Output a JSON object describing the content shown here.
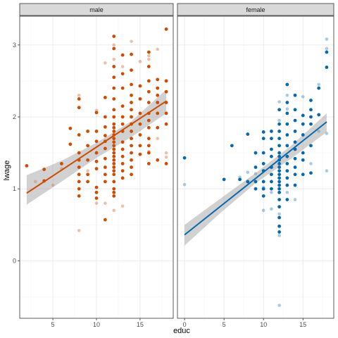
{
  "chart_data": {
    "type": "scatter",
    "xlabel": "educ",
    "ylabel": "lwage",
    "xlim": [
      1.2,
      18.8
    ],
    "ylim": [
      -0.8,
      3.4
    ],
    "x_ticks": [
      0,
      5,
      10,
      15
    ],
    "y_ticks": [
      0,
      1,
      2,
      3
    ],
    "grid": true,
    "legend": "none",
    "colors": {
      "strip_fill": "#d9d9d9",
      "band": "#999999",
      "grid_major": "#ebebeb",
      "grid_minor": "#f5f5f5"
    },
    "panels": [
      {
        "name": "male",
        "xlim": [
          1.2,
          18.8
        ],
        "x_ticks": [
          5,
          10,
          15
        ],
        "color": "#cc4c02",
        "fit": {
          "x": [
            2,
            18
          ],
          "y": [
            0.94,
            2.22
          ]
        },
        "band": {
          "x": [
            2,
            6,
            10,
            14,
            18
          ],
          "upper": [
            1.19,
            1.39,
            1.64,
            1.94,
            2.38
          ],
          "lower": [
            0.78,
            1.1,
            1.43,
            1.72,
            2.05
          ]
        },
        "points_strong": [
          [
            2,
            1.32
          ],
          [
            4,
            1.27
          ],
          [
            4,
            1.11
          ],
          [
            6,
            1.35
          ],
          [
            7,
            1.84
          ],
          [
            7,
            1.62
          ],
          [
            8,
            2.25
          ],
          [
            8,
            2.13
          ],
          [
            8,
            1.75
          ],
          [
            8,
            1.5
          ],
          [
            8,
            1.4
          ],
          [
            8,
            1.3
          ],
          [
            8,
            1.2
          ],
          [
            8,
            1.1
          ],
          [
            8,
            1.0
          ],
          [
            8,
            0.9
          ],
          [
            9,
            1.8
          ],
          [
            9,
            1.6
          ],
          [
            9,
            1.4
          ],
          [
            9,
            1.2
          ],
          [
            9,
            1.1
          ],
          [
            10,
            2.06
          ],
          [
            10,
            1.8
          ],
          [
            10,
            1.66
          ],
          [
            10,
            1.5
          ],
          [
            10,
            1.38
          ],
          [
            10,
            1.28
          ],
          [
            10,
            1.02
          ],
          [
            10,
            0.95
          ],
          [
            10,
            0.87
          ],
          [
            11,
            2.27
          ],
          [
            11,
            2.0
          ],
          [
            11,
            1.86
          ],
          [
            11,
            1.74
          ],
          [
            11,
            1.66
          ],
          [
            11,
            1.56
          ],
          [
            11,
            1.42
          ],
          [
            11,
            1.3
          ],
          [
            11,
            1.2
          ],
          [
            11,
            1.1
          ],
          [
            11,
            0.57
          ],
          [
            12,
            3.12
          ],
          [
            12,
            2.95
          ],
          [
            12,
            2.7
          ],
          [
            12,
            2.55
          ],
          [
            12,
            2.4
          ],
          [
            12,
            2.25
          ],
          [
            12,
            2.1
          ],
          [
            12,
            2.0
          ],
          [
            12,
            1.9
          ],
          [
            12,
            1.85
          ],
          [
            12,
            1.8
          ],
          [
            12,
            1.75
          ],
          [
            12,
            1.7
          ],
          [
            12,
            1.65
          ],
          [
            12,
            1.6
          ],
          [
            12,
            1.55
          ],
          [
            12,
            1.5
          ],
          [
            12,
            1.45
          ],
          [
            12,
            1.4
          ],
          [
            12,
            1.35
          ],
          [
            12,
            1.3
          ],
          [
            12,
            1.25
          ],
          [
            12,
            1.2
          ],
          [
            12,
            1.1
          ],
          [
            12,
            1.0
          ],
          [
            12,
            0.95
          ],
          [
            12,
            0.9
          ],
          [
            13,
            2.86
          ],
          [
            13,
            2.6
          ],
          [
            13,
            2.4
          ],
          [
            13,
            2.15
          ],
          [
            13,
            2.0
          ],
          [
            13,
            1.9
          ],
          [
            13,
            1.8
          ],
          [
            13,
            1.65
          ],
          [
            13,
            1.55
          ],
          [
            13,
            1.45
          ],
          [
            13,
            1.35
          ],
          [
            13,
            1.25
          ],
          [
            13,
            1.15
          ],
          [
            14,
            2.87
          ],
          [
            14,
            2.65
          ],
          [
            14,
            2.45
          ],
          [
            14,
            2.3
          ],
          [
            14,
            2.2
          ],
          [
            14,
            2.1
          ],
          [
            14,
            2.0
          ],
          [
            14,
            1.9
          ],
          [
            14,
            1.8
          ],
          [
            14,
            1.7
          ],
          [
            14,
            1.6
          ],
          [
            14,
            1.5
          ],
          [
            14,
            1.4
          ],
          [
            14,
            1.3
          ],
          [
            14,
            1.2
          ],
          [
            15,
            2.43
          ],
          [
            15,
            2.25
          ],
          [
            15,
            2.05
          ],
          [
            15,
            1.9
          ],
          [
            15,
            1.75
          ],
          [
            15,
            1.6
          ],
          [
            15,
            1.48
          ],
          [
            16,
            2.9
          ],
          [
            16,
            2.7
          ],
          [
            16,
            2.5
          ],
          [
            16,
            2.35
          ],
          [
            16,
            2.2
          ],
          [
            16,
            2.05
          ],
          [
            16,
            1.95
          ],
          [
            16,
            1.85
          ],
          [
            16,
            1.7
          ],
          [
            16,
            1.6
          ],
          [
            16,
            1.5
          ],
          [
            16,
            1.35
          ],
          [
            17,
            2.52
          ],
          [
            17,
            2.4
          ],
          [
            17,
            2.3
          ],
          [
            17,
            2.2
          ],
          [
            17,
            2.05
          ],
          [
            17,
            1.85
          ],
          [
            17,
            1.4
          ],
          [
            18,
            3.22
          ],
          [
            18,
            2.5
          ],
          [
            18,
            2.35
          ],
          [
            18,
            2.2
          ],
          [
            18,
            2.05
          ],
          [
            18,
            1.9
          ],
          [
            18,
            1.35
          ]
        ],
        "points_faint": [
          [
            3,
            1.1
          ],
          [
            5,
            1.05
          ],
          [
            6,
            1.28
          ],
          [
            8,
            0.42
          ],
          [
            8,
            2.3
          ],
          [
            9,
            1.25
          ],
          [
            10,
            2.09
          ],
          [
            10,
            0.8
          ],
          [
            11,
            2.75
          ],
          [
            11,
            0.8
          ],
          [
            12,
            3.0
          ],
          [
            12,
            2.8
          ],
          [
            12,
            0.7
          ],
          [
            13,
            2.7
          ],
          [
            13,
            0.76
          ],
          [
            14,
            3.05
          ],
          [
            14,
            2.0
          ],
          [
            15,
            2.77
          ],
          [
            16,
            2.85
          ],
          [
            16,
            2.8
          ],
          [
            16,
            1.52
          ],
          [
            17,
            2.94
          ],
          [
            17,
            1.7
          ],
          [
            18,
            1.5
          ],
          [
            18,
            1.44
          ]
        ]
      },
      {
        "name": "female",
        "xlim": [
          -0.9,
          18.9
        ],
        "x_ticks": [
          0,
          5,
          10,
          15
        ],
        "color": "#0868ac",
        "fit": {
          "x": [
            0,
            18
          ],
          "y": [
            0.36,
            1.93
          ]
        },
        "band": {
          "x": [
            0,
            4.5,
            9,
            13.5,
            18
          ],
          "upper": [
            0.5,
            0.86,
            1.22,
            1.6,
            2.05
          ],
          "lower": [
            0.21,
            0.66,
            1.08,
            1.42,
            1.79
          ]
        },
        "points_strong": [
          [
            0,
            1.43
          ],
          [
            5,
            1.13
          ],
          [
            6,
            1.6
          ],
          [
            7,
            1.13
          ],
          [
            8,
            1.76
          ],
          [
            8,
            1.1
          ],
          [
            9,
            1.5
          ],
          [
            9,
            1.3
          ],
          [
            9,
            1.1
          ],
          [
            9,
            1.0
          ],
          [
            10,
            1.79
          ],
          [
            10,
            1.7
          ],
          [
            10,
            1.5
          ],
          [
            10,
            1.35
          ],
          [
            10,
            1.25
          ],
          [
            10,
            1.1
          ],
          [
            10,
            1.0
          ],
          [
            10,
            0.9
          ],
          [
            11,
            1.8
          ],
          [
            11,
            1.7
          ],
          [
            11,
            1.55
          ],
          [
            11,
            1.45
          ],
          [
            11,
            1.3
          ],
          [
            11,
            1.2
          ],
          [
            11,
            1.1
          ],
          [
            11,
            1.0
          ],
          [
            12,
            2.1
          ],
          [
            12,
            1.9
          ],
          [
            12,
            1.8
          ],
          [
            12,
            1.7
          ],
          [
            12,
            1.6
          ],
          [
            12,
            1.5
          ],
          [
            12,
            1.45
          ],
          [
            12,
            1.4
          ],
          [
            12,
            1.35
          ],
          [
            12,
            1.3
          ],
          [
            12,
            1.25
          ],
          [
            12,
            1.2
          ],
          [
            12,
            1.15
          ],
          [
            12,
            1.1
          ],
          [
            12,
            1.05
          ],
          [
            12,
            1.0
          ],
          [
            12,
            0.95
          ],
          [
            12,
            0.85
          ],
          [
            12,
            0.75
          ],
          [
            12,
            0.6
          ],
          [
            12,
            0.48
          ],
          [
            12,
            0.4
          ],
          [
            13,
            2.45
          ],
          [
            13,
            2.2
          ],
          [
            13,
            2.05
          ],
          [
            13,
            1.9
          ],
          [
            13,
            1.75
          ],
          [
            13,
            1.6
          ],
          [
            13,
            1.45
          ],
          [
            13,
            1.35
          ],
          [
            13,
            1.25
          ],
          [
            13,
            1.15
          ],
          [
            13,
            1.05
          ],
          [
            13,
            0.85
          ],
          [
            14,
            2.3
          ],
          [
            14,
            2.1
          ],
          [
            14,
            1.95
          ],
          [
            14,
            1.8
          ],
          [
            14,
            1.65
          ],
          [
            14,
            1.55
          ],
          [
            14,
            1.42
          ],
          [
            14,
            1.3
          ],
          [
            14,
            1.2
          ],
          [
            14,
            1.05
          ],
          [
            15,
            2.02
          ],
          [
            15,
            1.9
          ],
          [
            15,
            1.75
          ],
          [
            15,
            1.5
          ],
          [
            15,
            1.4
          ],
          [
            15,
            1.2
          ],
          [
            16,
            2.23
          ],
          [
            16,
            2.1
          ],
          [
            16,
            2.0
          ],
          [
            16,
            1.9
          ],
          [
            16,
            1.6
          ],
          [
            16,
            1.22
          ],
          [
            17,
            2.4
          ],
          [
            17,
            2.03
          ],
          [
            18,
            2.9
          ],
          [
            18,
            2.69
          ]
        ],
        "points_faint": [
          [
            0,
            1.06
          ],
          [
            7,
            1.16
          ],
          [
            8,
            1.23
          ],
          [
            9,
            1.21
          ],
          [
            10,
            1.02
          ],
          [
            10,
            0.7
          ],
          [
            11,
            0.72
          ],
          [
            11,
            0.95
          ],
          [
            12,
            2.21
          ],
          [
            12,
            1.95
          ],
          [
            12,
            0.65
          ],
          [
            12,
            0.35
          ],
          [
            12,
            -0.62
          ],
          [
            13,
            2.3
          ],
          [
            13,
            2.11
          ],
          [
            13,
            0.95
          ],
          [
            14,
            1.55
          ],
          [
            14,
            0.85
          ],
          [
            15,
            2.28
          ],
          [
            15,
            1.9
          ],
          [
            16,
            1.35
          ],
          [
            17,
            2.45
          ],
          [
            17,
            1.8
          ],
          [
            18,
            3.08
          ],
          [
            18,
            2.95
          ],
          [
            18,
            1.77
          ],
          [
            18,
            1.25
          ]
        ]
      }
    ]
  }
}
